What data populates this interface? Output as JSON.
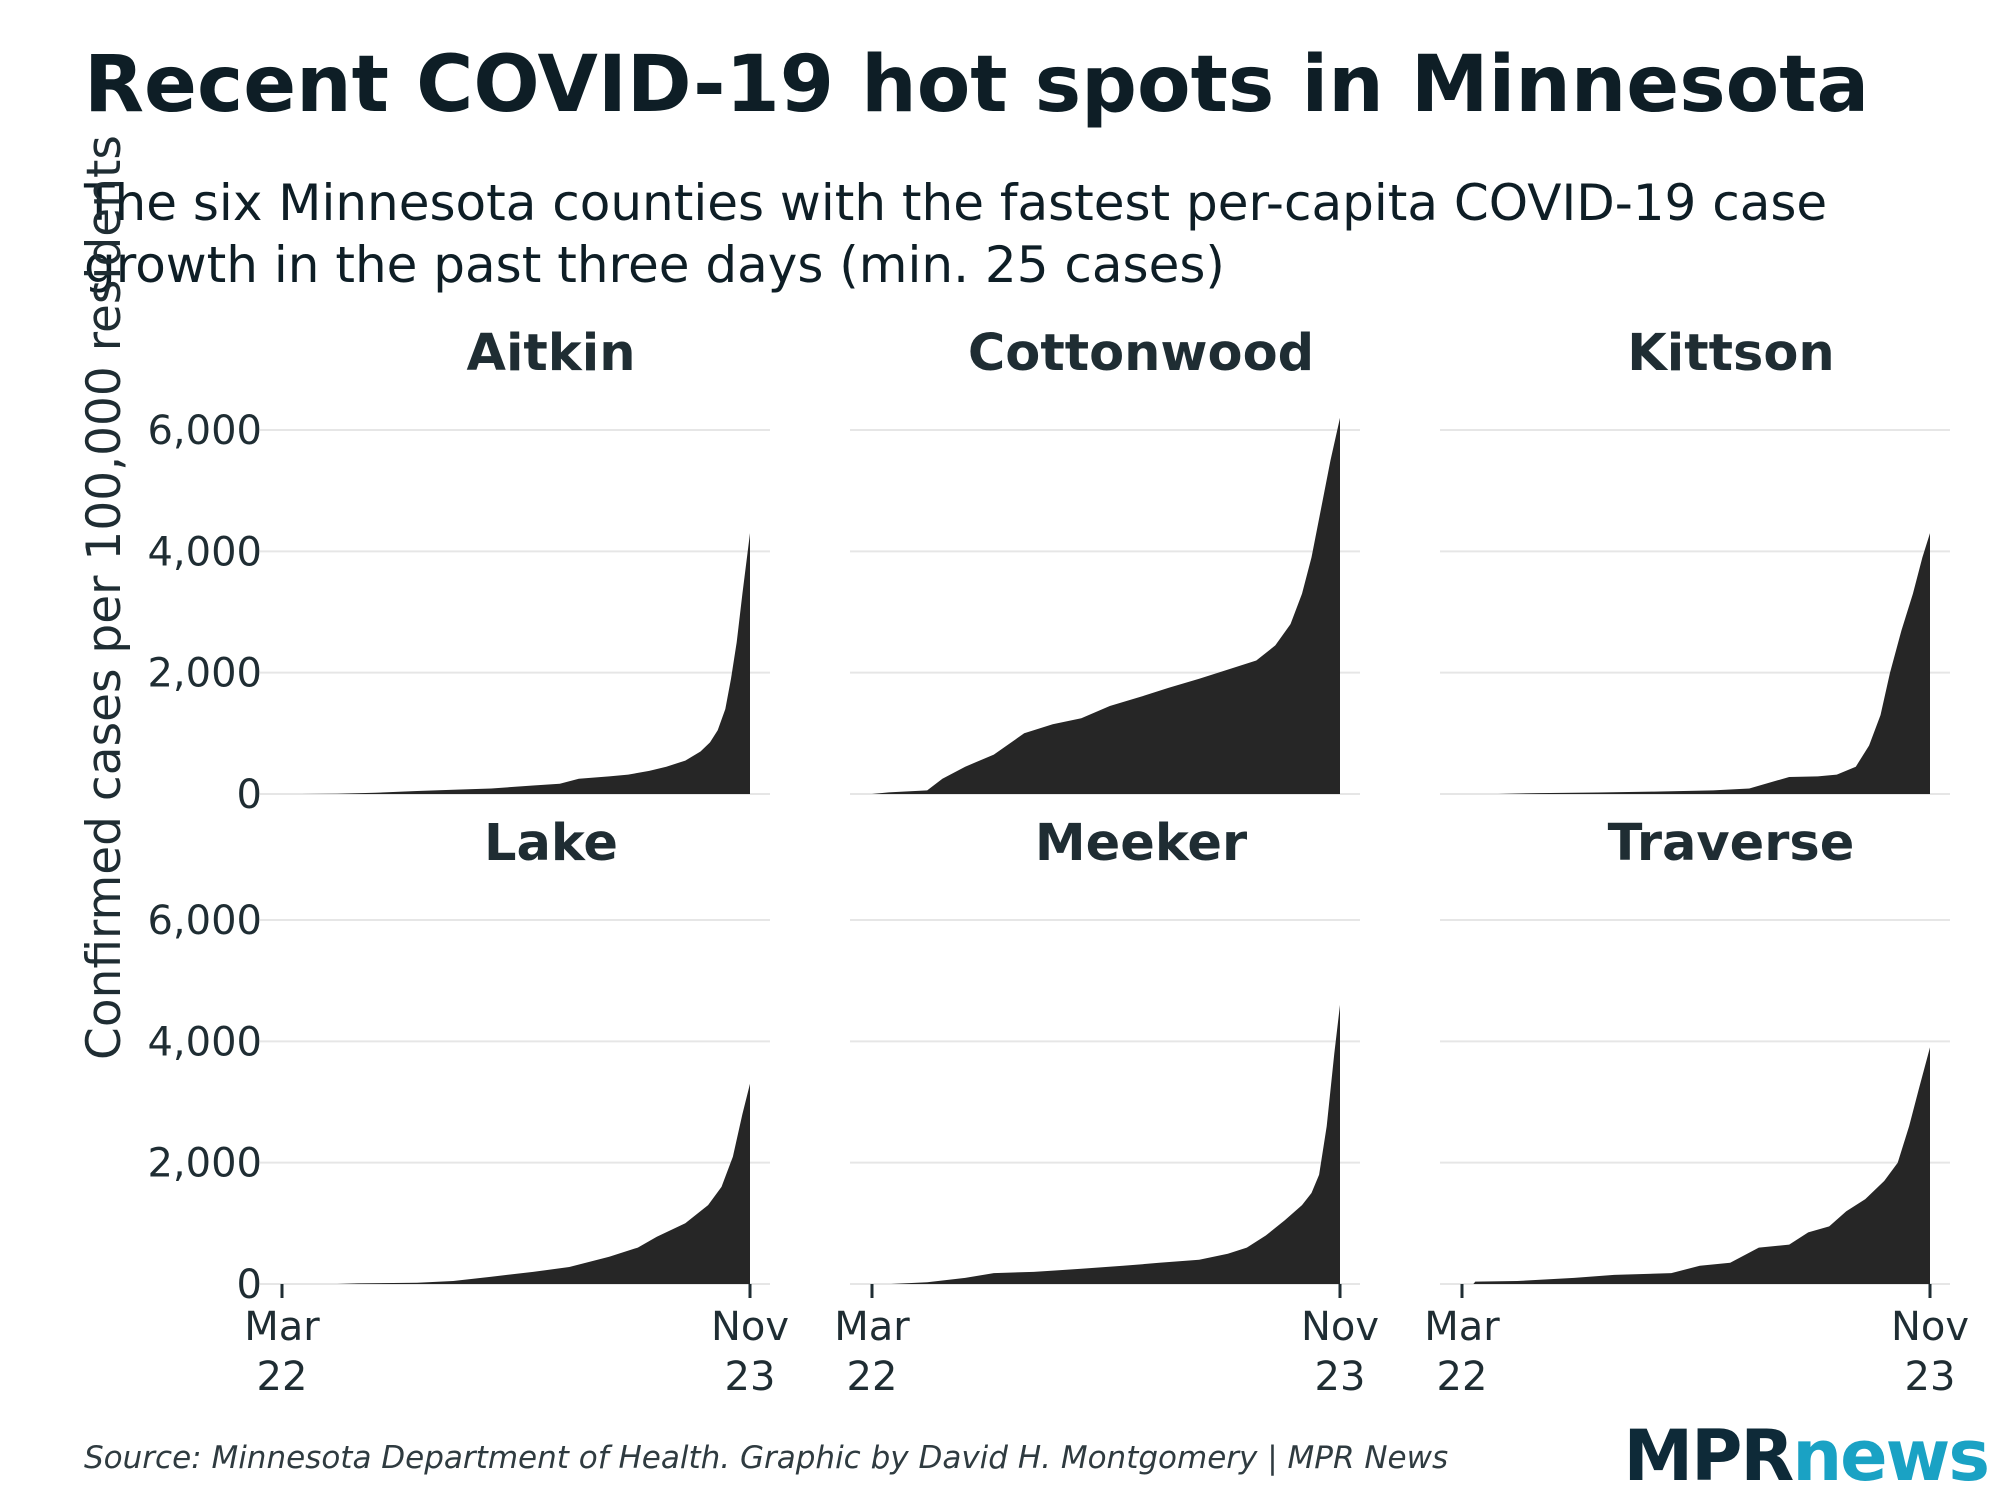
{
  "header": {
    "title": "Recent COVID-19 hot spots in Minnesota",
    "subtitle": "The six Minnesota counties with the fastest per-capita COVID-19 case growth in the past three days (min. 25 cases)"
  },
  "footer": {
    "source": "Source: Minnesota Department of Health. Graphic by David H. Montgomery | MPR News",
    "logo_mpr": "MPR",
    "logo_news": "news"
  },
  "colors": {
    "area": "#262626",
    "grid": "#e6e6e6",
    "text": "#1f2d33"
  },
  "chart_data": {
    "type": "area",
    "ylabel": "Confirmed cases per 100,000 residents",
    "ylim": [
      0,
      6400
    ],
    "yticks": [
      0,
      2000,
      4000,
      6000
    ],
    "ytick_labels": [
      "0",
      "2,000",
      "4,000",
      "6,000"
    ],
    "xlim": [
      "2020-03-22",
      "2020-11-23"
    ],
    "xticks": [
      {
        "date": "2020-03-22",
        "label": [
          "Mar",
          "22"
        ]
      },
      {
        "date": "2020-11-23",
        "label": [
          "Nov",
          "23"
        ]
      }
    ],
    "grid": true,
    "panels": [
      {
        "name": "Aitkin",
        "points": [
          [
            "2020-04-01",
            0
          ],
          [
            "2020-04-20",
            5
          ],
          [
            "2020-05-10",
            20
          ],
          [
            "2020-06-01",
            50
          ],
          [
            "2020-06-20",
            70
          ],
          [
            "2020-07-10",
            90
          ],
          [
            "2020-08-01",
            140
          ],
          [
            "2020-08-15",
            170
          ],
          [
            "2020-08-25",
            250
          ],
          [
            "2020-09-10",
            290
          ],
          [
            "2020-09-20",
            320
          ],
          [
            "2020-10-01",
            380
          ],
          [
            "2020-10-10",
            450
          ],
          [
            "2020-10-20",
            550
          ],
          [
            "2020-10-28",
            700
          ],
          [
            "2020-11-02",
            850
          ],
          [
            "2020-11-06",
            1050
          ],
          [
            "2020-11-10",
            1400
          ],
          [
            "2020-11-13",
            1900
          ],
          [
            "2020-11-16",
            2500
          ],
          [
            "2020-11-19",
            3300
          ],
          [
            "2020-11-21",
            3800
          ],
          [
            "2020-11-23",
            4300
          ]
        ]
      },
      {
        "name": "Cottonwood",
        "points": [
          [
            "2020-03-22",
            0
          ],
          [
            "2020-04-01",
            30
          ],
          [
            "2020-04-20",
            60
          ],
          [
            "2020-04-28",
            250
          ],
          [
            "2020-05-10",
            450
          ],
          [
            "2020-05-25",
            650
          ],
          [
            "2020-06-10",
            1000
          ],
          [
            "2020-06-25",
            1150
          ],
          [
            "2020-07-10",
            1250
          ],
          [
            "2020-07-25",
            1450
          ],
          [
            "2020-08-10",
            1600
          ],
          [
            "2020-08-25",
            1750
          ],
          [
            "2020-09-10",
            1900
          ],
          [
            "2020-09-25",
            2050
          ],
          [
            "2020-10-10",
            2200
          ],
          [
            "2020-10-20",
            2450
          ],
          [
            "2020-10-28",
            2800
          ],
          [
            "2020-11-03",
            3300
          ],
          [
            "2020-11-08",
            3900
          ],
          [
            "2020-11-13",
            4700
          ],
          [
            "2020-11-18",
            5500
          ],
          [
            "2020-11-23",
            6200
          ]
        ]
      },
      {
        "name": "Kittson",
        "points": [
          [
            "2020-04-10",
            0
          ],
          [
            "2020-05-01",
            15
          ],
          [
            "2020-06-01",
            25
          ],
          [
            "2020-07-01",
            40
          ],
          [
            "2020-08-01",
            60
          ],
          [
            "2020-08-20",
            90
          ],
          [
            "2020-09-01",
            200
          ],
          [
            "2020-09-10",
            280
          ],
          [
            "2020-09-25",
            290
          ],
          [
            "2020-10-05",
            320
          ],
          [
            "2020-10-15",
            450
          ],
          [
            "2020-10-22",
            800
          ],
          [
            "2020-10-28",
            1300
          ],
          [
            "2020-11-02",
            2000
          ],
          [
            "2020-11-08",
            2700
          ],
          [
            "2020-11-14",
            3300
          ],
          [
            "2020-11-19",
            3900
          ],
          [
            "2020-11-23",
            4300
          ]
        ]
      },
      {
        "name": "Lake",
        "points": [
          [
            "2020-04-20",
            0
          ],
          [
            "2020-05-01",
            10
          ],
          [
            "2020-06-01",
            20
          ],
          [
            "2020-06-20",
            50
          ],
          [
            "2020-07-10",
            120
          ],
          [
            "2020-08-01",
            200
          ],
          [
            "2020-08-20",
            280
          ],
          [
            "2020-09-10",
            450
          ],
          [
            "2020-09-25",
            600
          ],
          [
            "2020-10-05",
            780
          ],
          [
            "2020-10-20",
            1000
          ],
          [
            "2020-11-01",
            1300
          ],
          [
            "2020-11-08",
            1600
          ],
          [
            "2020-11-14",
            2100
          ],
          [
            "2020-11-19",
            2800
          ],
          [
            "2020-11-23",
            3300
          ]
        ]
      },
      {
        "name": "Meeker",
        "points": [
          [
            "2020-04-01",
            0
          ],
          [
            "2020-04-20",
            30
          ],
          [
            "2020-05-10",
            100
          ],
          [
            "2020-05-25",
            180
          ],
          [
            "2020-06-15",
            200
          ],
          [
            "2020-07-10",
            250
          ],
          [
            "2020-08-01",
            300
          ],
          [
            "2020-08-20",
            350
          ],
          [
            "2020-09-10",
            400
          ],
          [
            "2020-09-25",
            500
          ],
          [
            "2020-10-05",
            600
          ],
          [
            "2020-10-15",
            800
          ],
          [
            "2020-10-25",
            1050
          ],
          [
            "2020-11-03",
            1300
          ],
          [
            "2020-11-08",
            1500
          ],
          [
            "2020-11-12",
            1800
          ],
          [
            "2020-11-16",
            2600
          ],
          [
            "2020-11-20",
            3800
          ],
          [
            "2020-11-23",
            4600
          ]
        ]
      },
      {
        "name": "Traverse",
        "points": [
          [
            "2020-03-28",
            0
          ],
          [
            "2020-03-29",
            40
          ],
          [
            "2020-04-20",
            50
          ],
          [
            "2020-05-20",
            100
          ],
          [
            "2020-06-10",
            150
          ],
          [
            "2020-07-10",
            180
          ],
          [
            "2020-07-25",
            300
          ],
          [
            "2020-08-10",
            350
          ],
          [
            "2020-08-25",
            600
          ],
          [
            "2020-09-10",
            650
          ],
          [
            "2020-09-20",
            850
          ],
          [
            "2020-10-01",
            950
          ],
          [
            "2020-10-10",
            1200
          ],
          [
            "2020-10-20",
            1400
          ],
          [
            "2020-10-30",
            1700
          ],
          [
            "2020-11-06",
            2000
          ],
          [
            "2020-11-12",
            2600
          ],
          [
            "2020-11-17",
            3200
          ],
          [
            "2020-11-23",
            3900
          ]
        ]
      }
    ]
  }
}
